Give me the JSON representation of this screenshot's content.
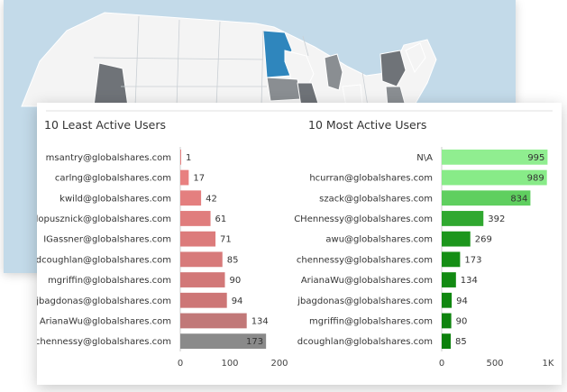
{
  "map": {
    "land_color": "#f4f4f4",
    "water_color": "#c3dae9",
    "border_color": "#c9cfd4",
    "highlight_color": "#2f86bd",
    "dark_color": "#6f7378",
    "mid_color": "#8a8e92"
  },
  "least_active": {
    "title": "10 Least Active Users"
  },
  "most_active": {
    "title": "10 Most Active Users"
  },
  "chart_data": [
    {
      "type": "bar",
      "orientation": "horizontal",
      "title": "10 Least Active Users",
      "categories": [
        "msantry@globalshares.com",
        "carlng@globalshares.com",
        "kwild@globalshares.com",
        "elopusznick@globalshares.com",
        "IGassner@globalshares.com",
        "dcoughlan@globalshares.com",
        "mgriffin@globalshares.com",
        "jbagdonas@globalshares.com",
        "ArianaWu@globalshares.com",
        "chennessy@globalshares.com"
      ],
      "values": [
        1,
        17,
        42,
        61,
        71,
        85,
        90,
        94,
        134,
        173
      ],
      "colors": [
        "#e88080",
        "#e88080",
        "#e47f7f",
        "#e07d7d",
        "#dc7b7b",
        "#d77a7a",
        "#d27878",
        "#cd7676",
        "#c17878",
        "#8a8a8a"
      ],
      "xlim": [
        0,
        200
      ],
      "ticks": [
        0,
        100,
        200
      ],
      "tick_labels": [
        "0",
        "100",
        "200"
      ],
      "grid": false
    },
    {
      "type": "bar",
      "orientation": "horizontal",
      "title": "10 Most Active Users",
      "categories": [
        "N\\A",
        "hcurran@globalshares.com",
        "szack@globalshares.com",
        "CHennessy@globalshares.com",
        "awu@globalshares.com",
        "chennessy@globalshares.com",
        "ArianaWu@globalshares.com",
        "jbagdonas@globalshares.com",
        "mgriffin@globalshares.com",
        "dcoughlan@globalshares.com"
      ],
      "values": [
        995,
        989,
        834,
        392,
        269,
        173,
        134,
        94,
        90,
        85
      ],
      "colors": [
        "#90ee90",
        "#88eb88",
        "#5fcf5f",
        "#30a830",
        "#1c961c",
        "#158e15",
        "#128a12",
        "#0f860f",
        "#0d830d",
        "#0b800b"
      ],
      "xlim": [
        0,
        1000
      ],
      "ticks": [
        0,
        500,
        1000
      ],
      "tick_labels": [
        "0",
        "500",
        "1K"
      ],
      "grid": false
    }
  ]
}
